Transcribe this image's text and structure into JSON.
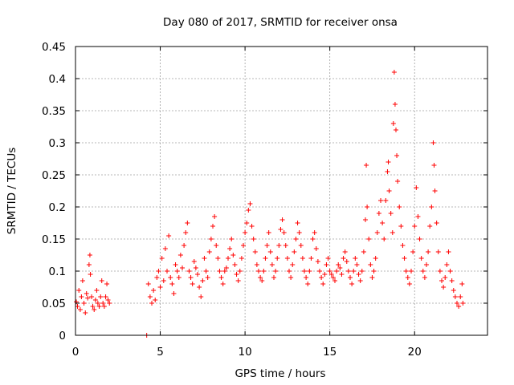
{
  "chart_data": {
    "type": "scatter",
    "title": "Day 080 of 2017, SRMTID for receiver onsa",
    "xlabel": "GPS time / hours",
    "ylabel": "SRMTID / TECUs",
    "xlim": [
      0,
      24.3
    ],
    "ylim": [
      0,
      0.45
    ],
    "x_ticks": [
      "0",
      "5",
      "10",
      "15",
      "20"
    ],
    "x_tick_values": [
      0,
      5,
      10,
      15,
      20
    ],
    "y_ticks": [
      "0",
      "0.05",
      "0.1",
      "0.15",
      "0.2",
      "0.25",
      "0.3",
      "0.35",
      "0.4",
      "0.45"
    ],
    "y_tick_values": [
      0,
      0.05,
      0.1,
      0.15,
      0.2,
      0.25,
      0.3,
      0.35,
      0.4,
      0.45
    ],
    "grid": true,
    "marker": "+",
    "color": "#ff0000",
    "series": [
      {
        "name": "SRMTID",
        "points": [
          [
            0.05,
            0.052
          ],
          [
            0.12,
            0.045
          ],
          [
            0.2,
            0.07
          ],
          [
            0.28,
            0.04
          ],
          [
            0.35,
            0.06
          ],
          [
            0.42,
            0.085
          ],
          [
            0.5,
            0.05
          ],
          [
            0.58,
            0.035
          ],
          [
            0.65,
            0.065
          ],
          [
            0.72,
            0.058
          ],
          [
            0.8,
            0.11
          ],
          [
            0.85,
            0.125
          ],
          [
            0.88,
            0.095
          ],
          [
            0.95,
            0.06
          ],
          [
            1.02,
            0.045
          ],
          [
            1.1,
            0.04
          ],
          [
            1.18,
            0.055
          ],
          [
            1.25,
            0.07
          ],
          [
            1.32,
            0.05
          ],
          [
            1.4,
            0.045
          ],
          [
            1.48,
            0.06
          ],
          [
            1.55,
            0.085
          ],
          [
            1.62,
            0.05
          ],
          [
            1.7,
            0.045
          ],
          [
            1.78,
            0.06
          ],
          [
            1.85,
            0.08
          ],
          [
            1.92,
            0.055
          ],
          [
            2.0,
            0.05
          ],
          [
            4.2,
            0.0
          ],
          [
            4.3,
            0.08
          ],
          [
            4.4,
            0.06
          ],
          [
            4.5,
            0.05
          ],
          [
            4.6,
            0.07
          ],
          [
            4.7,
            0.055
          ],
          [
            4.8,
            0.09
          ],
          [
            4.9,
            0.1
          ],
          [
            5.0,
            0.075
          ],
          [
            5.1,
            0.12
          ],
          [
            5.2,
            0.085
          ],
          [
            5.3,
            0.135
          ],
          [
            5.4,
            0.1
          ],
          [
            5.5,
            0.155
          ],
          [
            5.6,
            0.09
          ],
          [
            5.7,
            0.08
          ],
          [
            5.8,
            0.065
          ],
          [
            5.9,
            0.11
          ],
          [
            6.0,
            0.1
          ],
          [
            6.1,
            0.09
          ],
          [
            6.2,
            0.125
          ],
          [
            6.3,
            0.105
          ],
          [
            6.4,
            0.14
          ],
          [
            6.5,
            0.16
          ],
          [
            6.6,
            0.175
          ],
          [
            6.7,
            0.1
          ],
          [
            6.8,
            0.09
          ],
          [
            6.9,
            0.08
          ],
          [
            7.0,
            0.115
          ],
          [
            7.1,
            0.105
          ],
          [
            7.2,
            0.095
          ],
          [
            7.3,
            0.075
          ],
          [
            7.4,
            0.06
          ],
          [
            7.5,
            0.085
          ],
          [
            7.6,
            0.12
          ],
          [
            7.7,
            0.1
          ],
          [
            7.8,
            0.09
          ],
          [
            7.9,
            0.13
          ],
          [
            8.0,
            0.15
          ],
          [
            8.1,
            0.17
          ],
          [
            8.2,
            0.185
          ],
          [
            8.3,
            0.14
          ],
          [
            8.4,
            0.12
          ],
          [
            8.5,
            0.1
          ],
          [
            8.6,
            0.09
          ],
          [
            8.7,
            0.08
          ],
          [
            8.8,
            0.1
          ],
          [
            8.9,
            0.105
          ],
          [
            9.0,
            0.12
          ],
          [
            9.1,
            0.135
          ],
          [
            9.2,
            0.15
          ],
          [
            9.3,
            0.125
          ],
          [
            9.4,
            0.11
          ],
          [
            9.5,
            0.095
          ],
          [
            9.6,
            0.085
          ],
          [
            9.7,
            0.1
          ],
          [
            9.8,
            0.12
          ],
          [
            9.9,
            0.14
          ],
          [
            10.0,
            0.16
          ],
          [
            10.1,
            0.175
          ],
          [
            10.2,
            0.195
          ],
          [
            10.3,
            0.205
          ],
          [
            10.4,
            0.17
          ],
          [
            10.5,
            0.15
          ],
          [
            10.6,
            0.13
          ],
          [
            10.7,
            0.11
          ],
          [
            10.8,
            0.1
          ],
          [
            10.9,
            0.09
          ],
          [
            11.0,
            0.085
          ],
          [
            11.1,
            0.1
          ],
          [
            11.2,
            0.12
          ],
          [
            11.3,
            0.14
          ],
          [
            11.4,
            0.16
          ],
          [
            11.5,
            0.13
          ],
          [
            11.6,
            0.11
          ],
          [
            11.7,
            0.09
          ],
          [
            11.8,
            0.1
          ],
          [
            11.9,
            0.12
          ],
          [
            12.0,
            0.14
          ],
          [
            12.1,
            0.165
          ],
          [
            12.2,
            0.18
          ],
          [
            12.3,
            0.16
          ],
          [
            12.4,
            0.14
          ],
          [
            12.5,
            0.12
          ],
          [
            12.6,
            0.1
          ],
          [
            12.7,
            0.09
          ],
          [
            12.8,
            0.11
          ],
          [
            12.9,
            0.13
          ],
          [
            13.0,
            0.15
          ],
          [
            13.1,
            0.175
          ],
          [
            13.2,
            0.16
          ],
          [
            13.3,
            0.14
          ],
          [
            13.4,
            0.12
          ],
          [
            13.5,
            0.1
          ],
          [
            13.6,
            0.09
          ],
          [
            13.7,
            0.08
          ],
          [
            13.8,
            0.1
          ],
          [
            13.9,
            0.12
          ],
          [
            14.0,
            0.15
          ],
          [
            14.1,
            0.16
          ],
          [
            14.2,
            0.135
          ],
          [
            14.3,
            0.115
          ],
          [
            14.4,
            0.1
          ],
          [
            14.5,
            0.09
          ],
          [
            14.6,
            0.08
          ],
          [
            14.7,
            0.095
          ],
          [
            14.8,
            0.11
          ],
          [
            14.9,
            0.12
          ],
          [
            15.0,
            0.1
          ],
          [
            15.1,
            0.095
          ],
          [
            15.2,
            0.09
          ],
          [
            15.3,
            0.085
          ],
          [
            15.4,
            0.1
          ],
          [
            15.5,
            0.11
          ],
          [
            15.6,
            0.105
          ],
          [
            15.7,
            0.095
          ],
          [
            15.8,
            0.12
          ],
          [
            15.9,
            0.13
          ],
          [
            16.0,
            0.115
          ],
          [
            16.1,
            0.1
          ],
          [
            16.2,
            0.09
          ],
          [
            16.3,
            0.08
          ],
          [
            16.4,
            0.1
          ],
          [
            16.5,
            0.12
          ],
          [
            16.6,
            0.11
          ],
          [
            16.7,
            0.095
          ],
          [
            16.8,
            0.085
          ],
          [
            16.9,
            0.1
          ],
          [
            17.0,
            0.13
          ],
          [
            17.1,
            0.18
          ],
          [
            17.15,
            0.265
          ],
          [
            17.2,
            0.2
          ],
          [
            17.3,
            0.15
          ],
          [
            17.4,
            0.11
          ],
          [
            17.5,
            0.09
          ],
          [
            17.6,
            0.1
          ],
          [
            17.7,
            0.12
          ],
          [
            17.8,
            0.16
          ],
          [
            17.9,
            0.19
          ],
          [
            18.0,
            0.21
          ],
          [
            18.1,
            0.175
          ],
          [
            18.2,
            0.15
          ],
          [
            18.3,
            0.21
          ],
          [
            18.4,
            0.255
          ],
          [
            18.45,
            0.27
          ],
          [
            18.5,
            0.225
          ],
          [
            18.6,
            0.19
          ],
          [
            18.7,
            0.16
          ],
          [
            18.75,
            0.33
          ],
          [
            18.8,
            0.41
          ],
          [
            18.85,
            0.36
          ],
          [
            18.9,
            0.32
          ],
          [
            18.95,
            0.28
          ],
          [
            19.0,
            0.24
          ],
          [
            19.1,
            0.2
          ],
          [
            19.2,
            0.17
          ],
          [
            19.3,
            0.14
          ],
          [
            19.4,
            0.12
          ],
          [
            19.5,
            0.1
          ],
          [
            19.6,
            0.09
          ],
          [
            19.7,
            0.08
          ],
          [
            19.8,
            0.1
          ],
          [
            19.9,
            0.13
          ],
          [
            20.0,
            0.17
          ],
          [
            20.1,
            0.23
          ],
          [
            20.2,
            0.185
          ],
          [
            20.3,
            0.15
          ],
          [
            20.4,
            0.12
          ],
          [
            20.5,
            0.1
          ],
          [
            20.6,
            0.09
          ],
          [
            20.7,
            0.11
          ],
          [
            20.8,
            0.13
          ],
          [
            20.9,
            0.17
          ],
          [
            21.0,
            0.2
          ],
          [
            21.1,
            0.3
          ],
          [
            21.15,
            0.265
          ],
          [
            21.2,
            0.225
          ],
          [
            21.3,
            0.175
          ],
          [
            21.4,
            0.13
          ],
          [
            21.5,
            0.1
          ],
          [
            21.6,
            0.085
          ],
          [
            21.7,
            0.075
          ],
          [
            21.8,
            0.09
          ],
          [
            21.9,
            0.11
          ],
          [
            22.0,
            0.13
          ],
          [
            22.1,
            0.1
          ],
          [
            22.2,
            0.085
          ],
          [
            22.3,
            0.07
          ],
          [
            22.4,
            0.06
          ],
          [
            22.5,
            0.05
          ],
          [
            22.6,
            0.045
          ],
          [
            22.7,
            0.06
          ],
          [
            22.8,
            0.08
          ],
          [
            22.85,
            0.05
          ]
        ]
      }
    ]
  }
}
